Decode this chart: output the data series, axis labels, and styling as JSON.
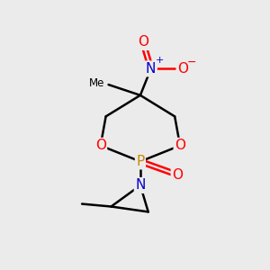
{
  "bg_color": "#ebebeb",
  "atom_colors": {
    "C": "#000000",
    "O": "#ff0000",
    "N": "#0000cc",
    "P": "#cc8800"
  },
  "bond_color": "#000000",
  "bond_lw": 1.8,
  "font_size": 11
}
